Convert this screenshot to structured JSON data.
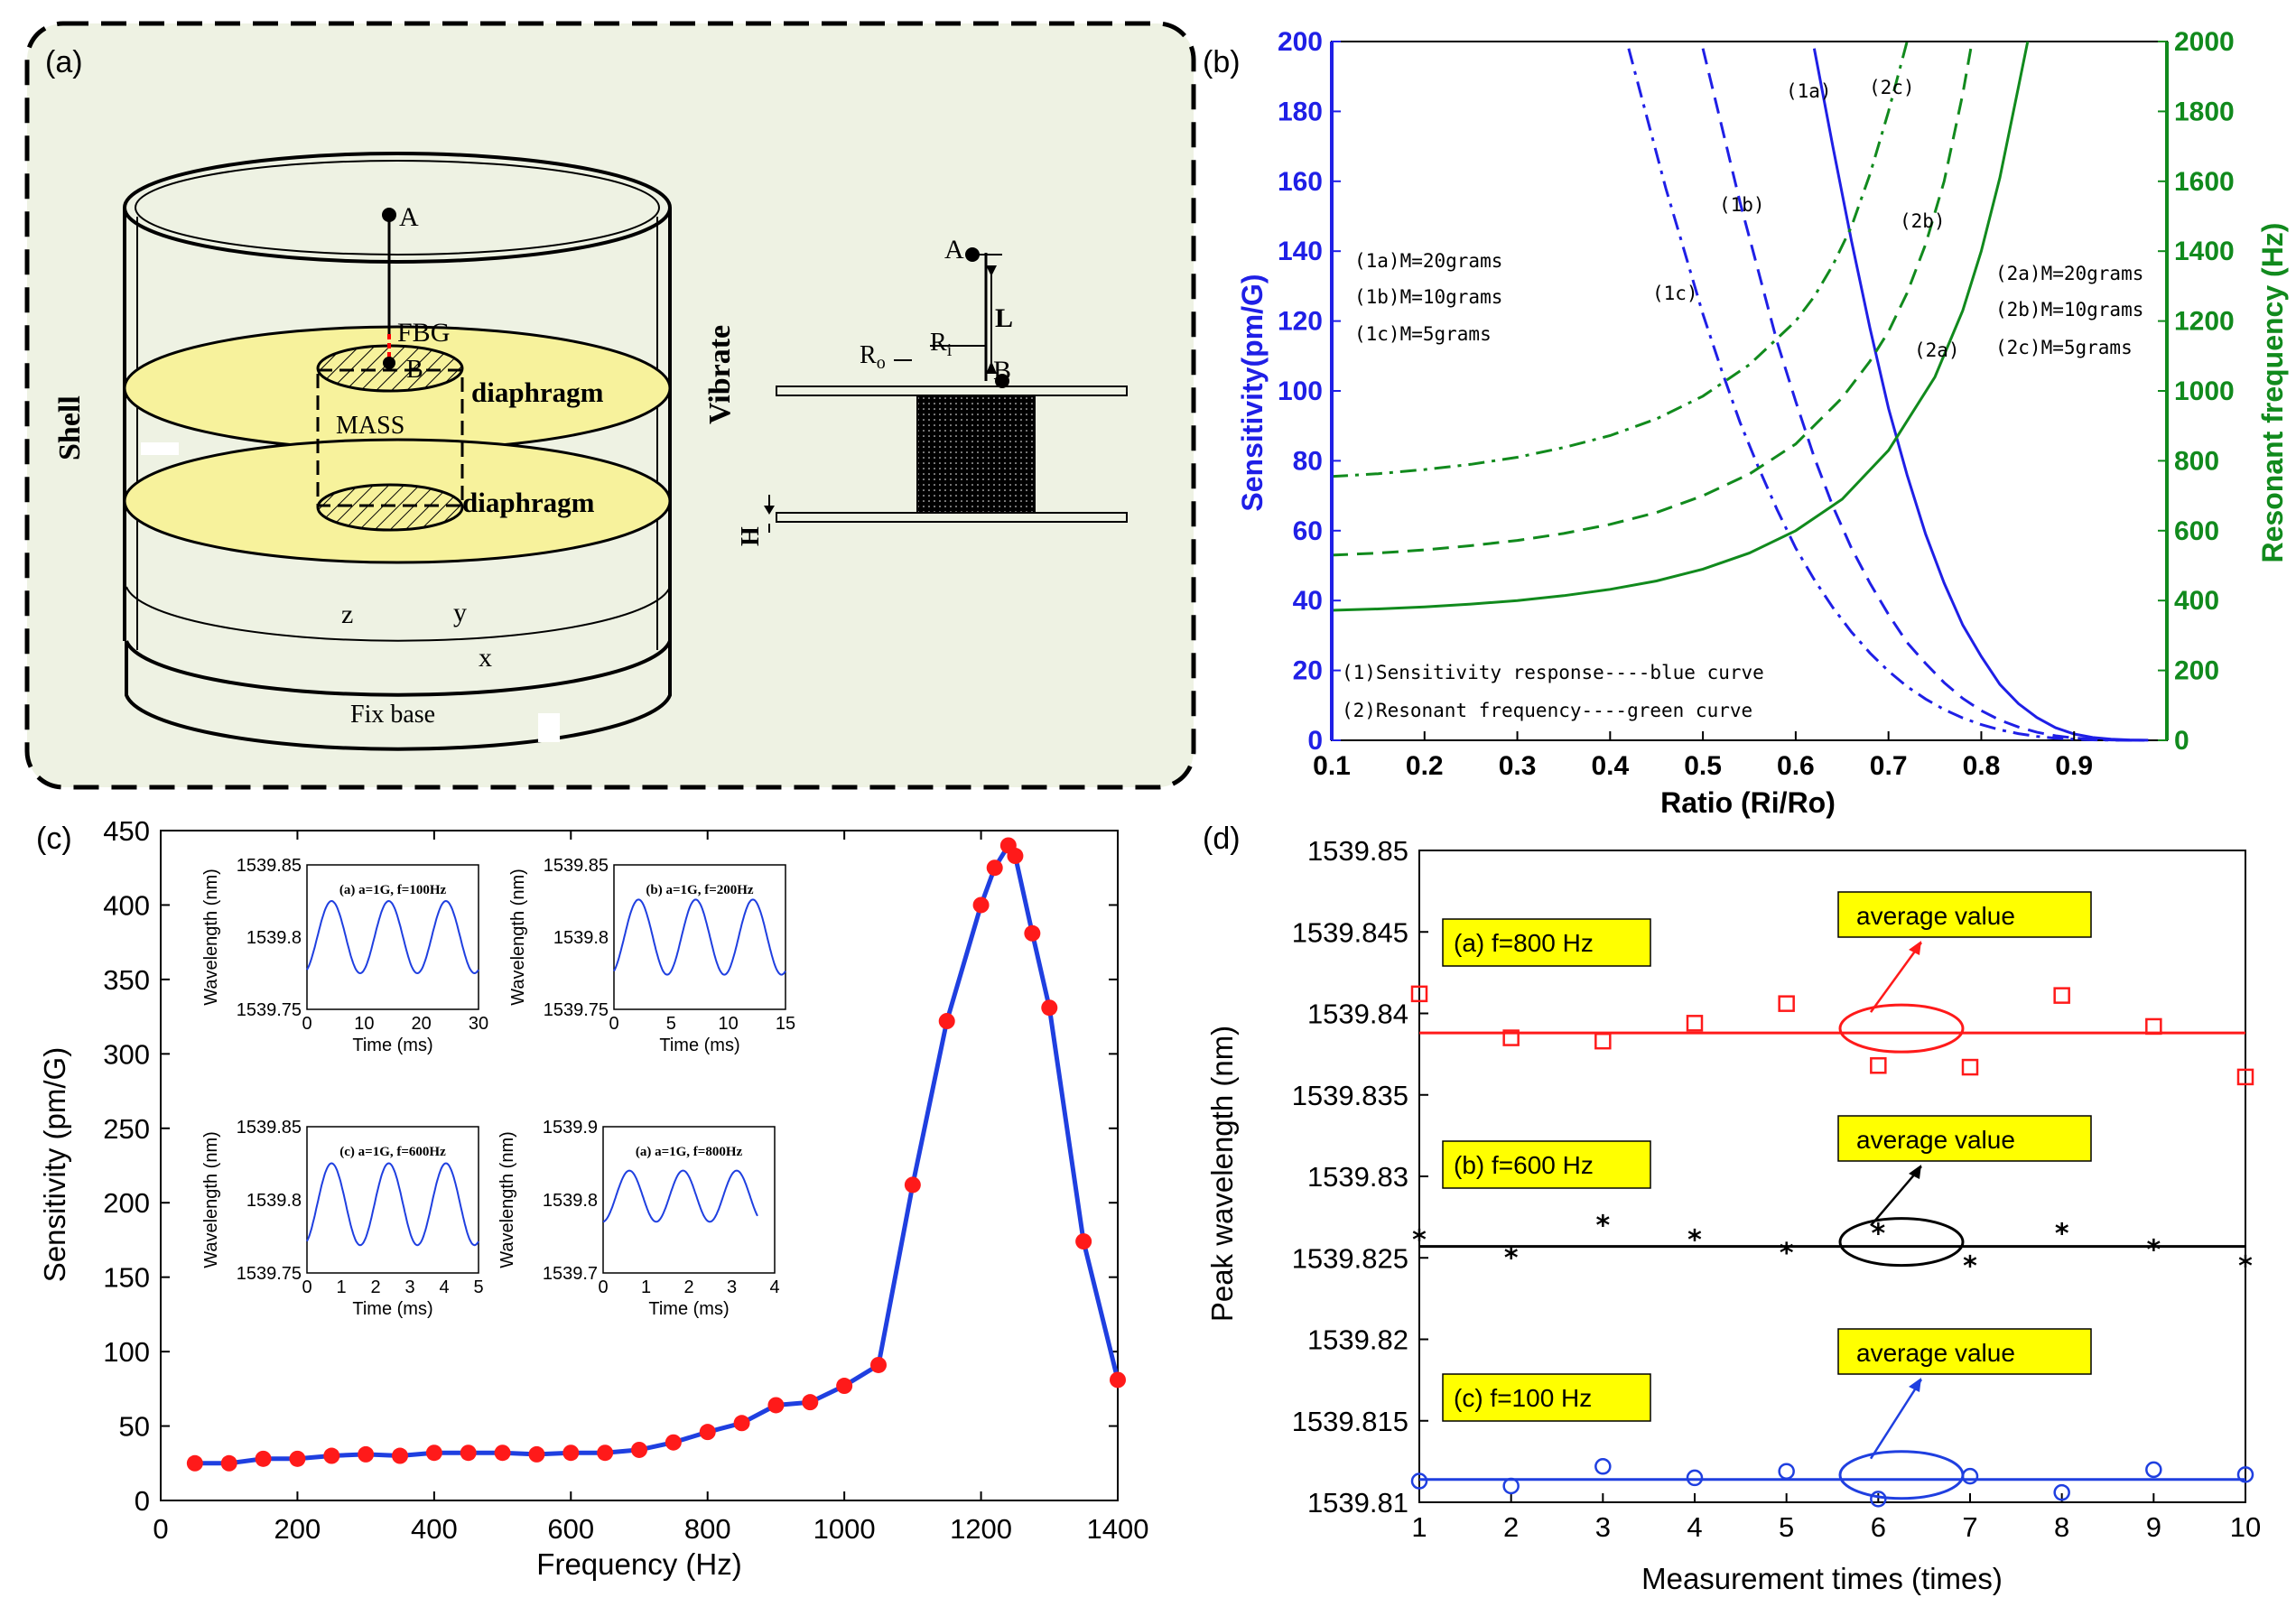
{
  "panel_a": {
    "label": "(a)",
    "shell": "Shell",
    "vibrate": "Vibrate",
    "point_a": "A",
    "point_b": "B",
    "fbg": "FBG",
    "mass": "MASS",
    "diaphragm_top": "diaphragm",
    "diaphragm_bottom": "diaphragm",
    "axis_z": "z",
    "axis_y": "y",
    "axis_x": "x",
    "fix_base": "Fix base",
    "side_a": "A",
    "side_b": "B",
    "side_l": "L",
    "side_ro": "R",
    "side_ro_sub": "o",
    "side_ri": "R",
    "side_ri_sub": "i",
    "side_h": "H",
    "colors": {
      "panel_bg": "#eef2e3",
      "diaphragm": "#f7f29c",
      "fbg": "#ff0000"
    }
  },
  "chart_data": [
    {
      "id": "b",
      "panel_label": "(b)",
      "type": "line",
      "xlabel": "Ratio (Ri/Ro)",
      "ylabel_left": "Sensitivity(pm/G)",
      "ylabel_right": "Resonant frequency (Hz)",
      "xlim": [
        0.1,
        1.0
      ],
      "ylim_left": [
        0,
        200
      ],
      "ylim_right": [
        0,
        2000
      ],
      "x_ticks": [
        "0.1",
        "0.2",
        "0.3",
        "0.4",
        "0.5",
        "0.6",
        "0.7",
        "0.8",
        "0.9"
      ],
      "y_left_ticks": [
        "0",
        "20",
        "40",
        "60",
        "80",
        "100",
        "120",
        "140",
        "160",
        "180",
        "200"
      ],
      "y_right_ticks": [
        "0",
        "200",
        "400",
        "600",
        "800",
        "1000",
        "1200",
        "1400",
        "1600",
        "1800",
        "2000"
      ],
      "colors": {
        "sensitivity": "#1f1fe6",
        "frequency": "#118a1d"
      },
      "series": [
        {
          "name": "(1a)",
          "axis": "left",
          "style": "solid",
          "color": "#1f1fe6",
          "x": [
            0.62,
            0.64,
            0.66,
            0.68,
            0.7,
            0.72,
            0.74,
            0.76,
            0.78,
            0.8,
            0.82,
            0.84,
            0.86,
            0.88,
            0.9,
            0.92,
            0.94,
            0.96,
            0.98
          ],
          "y": [
            198,
            170,
            143,
            118,
            95,
            76,
            59,
            45,
            33,
            24,
            16,
            10.5,
            6.5,
            3.6,
            1.8,
            0.8,
            0.3,
            0.1,
            0.02
          ]
        },
        {
          "name": "(1b)",
          "axis": "left",
          "style": "dashed",
          "color": "#1f1fe6",
          "x": [
            0.5,
            0.52,
            0.54,
            0.56,
            0.58,
            0.6,
            0.62,
            0.64,
            0.66,
            0.68,
            0.7,
            0.72,
            0.74,
            0.76,
            0.78,
            0.8,
            0.82,
            0.84,
            0.86,
            0.88,
            0.9,
            0.92,
            0.94,
            0.96,
            0.98
          ],
          "y": [
            198,
            176,
            154,
            134,
            114,
            97,
            81,
            67,
            55,
            45,
            36,
            28,
            22,
            16.5,
            12,
            8.5,
            5.8,
            3.8,
            2.3,
            1.3,
            0.65,
            0.3,
            0.1,
            0.03,
            0.01
          ]
        },
        {
          "name": "(1c)",
          "axis": "left",
          "style": "dashdot",
          "color": "#1f1fe6",
          "x": [
            0.42,
            0.44,
            0.46,
            0.48,
            0.5,
            0.52,
            0.54,
            0.56,
            0.58,
            0.6,
            0.62,
            0.64,
            0.66,
            0.68,
            0.7,
            0.72,
            0.74,
            0.76,
            0.78,
            0.8,
            0.82,
            0.84,
            0.86,
            0.88,
            0.9,
            0.92,
            0.94,
            0.96,
            0.98
          ],
          "y": [
            198,
            178,
            158,
            140,
            122,
            106,
            91,
            78,
            66,
            55,
            46,
            38,
            31,
            25,
            19.8,
            15.4,
            11.8,
            8.8,
            6.4,
            4.5,
            3.0,
            1.9,
            1.1,
            0.6,
            0.3,
            0.12,
            0.04,
            0.01,
            0.0
          ]
        },
        {
          "name": "(2a)",
          "axis": "right",
          "style": "solid",
          "color": "#118a1d",
          "x": [
            0.1,
            0.15,
            0.2,
            0.25,
            0.3,
            0.35,
            0.4,
            0.45,
            0.5,
            0.55,
            0.6,
            0.65,
            0.7,
            0.75,
            0.78,
            0.8,
            0.82,
            0.84,
            0.85
          ],
          "y": [
            372,
            376,
            382,
            390,
            400,
            414,
            432,
            456,
            490,
            536,
            600,
            690,
            830,
            1040,
            1230,
            1400,
            1610,
            1870,
            2000
          ]
        },
        {
          "name": "(2b)",
          "axis": "right",
          "style": "dashed",
          "color": "#118a1d",
          "x": [
            0.1,
            0.15,
            0.2,
            0.25,
            0.3,
            0.35,
            0.4,
            0.45,
            0.5,
            0.55,
            0.6,
            0.65,
            0.68,
            0.7,
            0.72,
            0.74,
            0.76,
            0.78,
            0.79
          ],
          "y": [
            530,
            536,
            545,
            557,
            572,
            592,
            618,
            652,
            700,
            762,
            848,
            980,
            1085,
            1170,
            1280,
            1420,
            1600,
            1850,
            2000
          ]
        },
        {
          "name": "(2c)",
          "axis": "right",
          "style": "dashdot",
          "color": "#118a1d",
          "x": [
            0.1,
            0.15,
            0.2,
            0.25,
            0.3,
            0.35,
            0.4,
            0.45,
            0.5,
            0.55,
            0.6,
            0.62,
            0.64,
            0.66,
            0.68,
            0.7,
            0.72
          ],
          "y": [
            755,
            763,
            775,
            790,
            810,
            838,
            872,
            920,
            985,
            1075,
            1200,
            1270,
            1360,
            1470,
            1620,
            1800,
            2000
          ]
        }
      ],
      "curve_labels": [
        "(1a)",
        "(1b)",
        "(1c)",
        "(2a)",
        "(2b)",
        "(2c)"
      ],
      "legend_left": [
        "(1a)M=20grams",
        "(1b)M=10grams",
        "(1c)M=5grams"
      ],
      "legend_right": [
        "(2a)M=20grams",
        "(2b)M=10grams",
        "(2c)M=5grams"
      ],
      "notes": [
        "(1)Sensitivity response----blue curve",
        "(2)Resonant frequency----green curve"
      ]
    },
    {
      "id": "c",
      "panel_label": "(c)",
      "type": "line",
      "xlabel": "Frequency (Hz)",
      "ylabel": "Sensitivity (pm/G)",
      "xlim": [
        0,
        1400
      ],
      "ylim": [
        0,
        450
      ],
      "x_ticks": [
        "0",
        "200",
        "400",
        "600",
        "800",
        "1000",
        "1200",
        "1400"
      ],
      "y_ticks": [
        "0",
        "50",
        "100",
        "150",
        "200",
        "250",
        "300",
        "350",
        "400",
        "450"
      ],
      "colors": {
        "line": "#1f3fe0",
        "marker": "#ff1a1a"
      },
      "x": [
        50,
        100,
        150,
        200,
        250,
        300,
        350,
        400,
        450,
        500,
        550,
        600,
        650,
        700,
        750,
        800,
        850,
        900,
        950,
        1000,
        1050,
        1100,
        1150,
        1200,
        1220,
        1240,
        1250,
        1275,
        1300,
        1350,
        1400
      ],
      "y": [
        25,
        25,
        28,
        28,
        30,
        31,
        30,
        32,
        32,
        32,
        31,
        32,
        32,
        34,
        39,
        46,
        52,
        64,
        66,
        77,
        91,
        212,
        322,
        400,
        425,
        440,
        433,
        381,
        331,
        174,
        81
      ],
      "insets": [
        {
          "title": "(a) a=1G, f=100Hz",
          "ylabel": "Wavelength (nm)",
          "xlabel": "Time (ms)",
          "y_ticks": [
            "1539.75",
            "1539.8",
            "1539.85"
          ],
          "x_ticks": [
            "0",
            "10",
            "20",
            "30"
          ],
          "xlim": [
            0,
            30
          ],
          "ylim": [
            1539.75,
            1539.85
          ],
          "period": 10,
          "phase": 1.8,
          "center": 1539.8,
          "amp": 0.025
        },
        {
          "title": "(b) a=1G, f=200Hz",
          "ylabel": "Wavelength (nm)",
          "xlabel": "Time (ms)",
          "y_ticks": [
            "1539.75",
            "1539.8",
            "1539.85"
          ],
          "x_ticks": [
            "0",
            "5",
            "10",
            "15"
          ],
          "xlim": [
            0,
            15
          ],
          "ylim": [
            1539.75,
            1539.85
          ],
          "period": 5,
          "phase": 0.9,
          "center": 1539.8,
          "amp": 0.026
        },
        {
          "title": "(c) a=1G, f=600Hz",
          "ylabel": "Wavelength (nm)",
          "xlabel": "Time (ms)",
          "y_ticks": [
            "1539.75",
            "1539.8",
            "1539.85"
          ],
          "x_ticks": [
            "0",
            "1",
            "2",
            "3",
            "4",
            "5"
          ],
          "xlim": [
            0,
            5
          ],
          "ylim": [
            1539.75,
            1539.85
          ],
          "period": 1.667,
          "phase": 0.3,
          "center": 1539.797,
          "amp": 0.028
        },
        {
          "title": "(a) a=1G, f=800Hz",
          "ylabel": "Wavelength (nm)",
          "xlabel": "Time (ms)",
          "y_ticks": [
            "1539.7",
            "1539.8",
            "1539.9"
          ],
          "x_ticks": [
            "0",
            "1",
            "2",
            "3",
            "4"
          ],
          "xlim": [
            0,
            4
          ],
          "ylim": [
            1539.7,
            1539.9
          ],
          "period": 1.25,
          "phase": 0.3,
          "center": 1539.805,
          "amp": 0.035,
          "tmax": 3.6
        }
      ]
    },
    {
      "id": "d",
      "panel_label": "(d)",
      "type": "scatter",
      "xlabel": "Measurement times (times)",
      "ylabel": "Peak wavelength (nm)",
      "xlim": [
        1,
        10
      ],
      "ylim": [
        1539.81,
        1539.85
      ],
      "x_ticks": [
        "1",
        "2",
        "3",
        "4",
        "5",
        "6",
        "7",
        "8",
        "9",
        "10"
      ],
      "y_ticks": [
        "1539.81",
        "1539.815",
        "1539.82",
        "1539.825",
        "1539.83",
        "1539.835",
        "1539.84",
        "1539.845",
        "1539.85"
      ],
      "series": [
        {
          "name": "(a) f=800 Hz",
          "color": "#ff1a1a",
          "marker": "square",
          "average": 1539.8388,
          "x": [
            1,
            2,
            3,
            4,
            5,
            6,
            7,
            8,
            9,
            10
          ],
          "y": [
            1539.8412,
            1539.8385,
            1539.8383,
            1539.8394,
            1539.8406,
            1539.8368,
            1539.8367,
            1539.8411,
            1539.8392,
            1539.8361
          ]
        },
        {
          "name": "(b) f=600 Hz",
          "color": "#000000",
          "marker": "star",
          "average": 1539.8257,
          "x": [
            1,
            2,
            3,
            4,
            5,
            6,
            7,
            8,
            9,
            10
          ],
          "y": [
            1539.8262,
            1539.8251,
            1539.8271,
            1539.8262,
            1539.8254,
            1539.8266,
            1539.8246,
            1539.8266,
            1539.8256,
            1539.8246
          ]
        },
        {
          "name": "(c) f=100 Hz",
          "color": "#1f3fe0",
          "marker": "circle",
          "average": 1539.8114,
          "x": [
            1,
            2,
            3,
            4,
            5,
            6,
            7,
            8,
            9,
            10
          ],
          "y": [
            1539.8113,
            1539.811,
            1539.8122,
            1539.8115,
            1539.8119,
            1539.8102,
            1539.8116,
            1539.8106,
            1539.812,
            1539.8117
          ]
        }
      ],
      "annotation": "average value",
      "label_bg": "#ffff00"
    }
  ]
}
